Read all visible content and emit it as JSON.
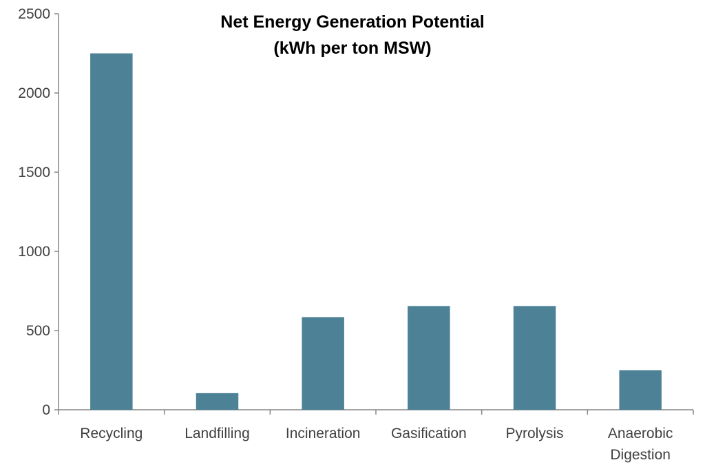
{
  "chart_data": {
    "type": "bar",
    "title": "Net Energy Generation Potential",
    "subtitle": "(kWh per ton MSW)",
    "xlabel": "",
    "ylabel": "",
    "categories": [
      "Recycling",
      "Landfilling",
      "Incineration",
      "Gasification",
      "Pyrolysis",
      "Anaerobic Digestion"
    ],
    "category_lines": [
      [
        "Recycling"
      ],
      [
        "Landfilling"
      ],
      [
        "Incineration"
      ],
      [
        "Gasification"
      ],
      [
        "Pyrolysis"
      ],
      [
        "Anaerobic",
        "Digestion"
      ]
    ],
    "values": [
      2250,
      105,
      585,
      655,
      655,
      250
    ],
    "ylim": [
      0,
      2500
    ],
    "yticks": [
      0,
      500,
      1000,
      1500,
      2000,
      2500
    ],
    "grid": false,
    "legend": "none",
    "bar_color": "#4D8196"
  }
}
